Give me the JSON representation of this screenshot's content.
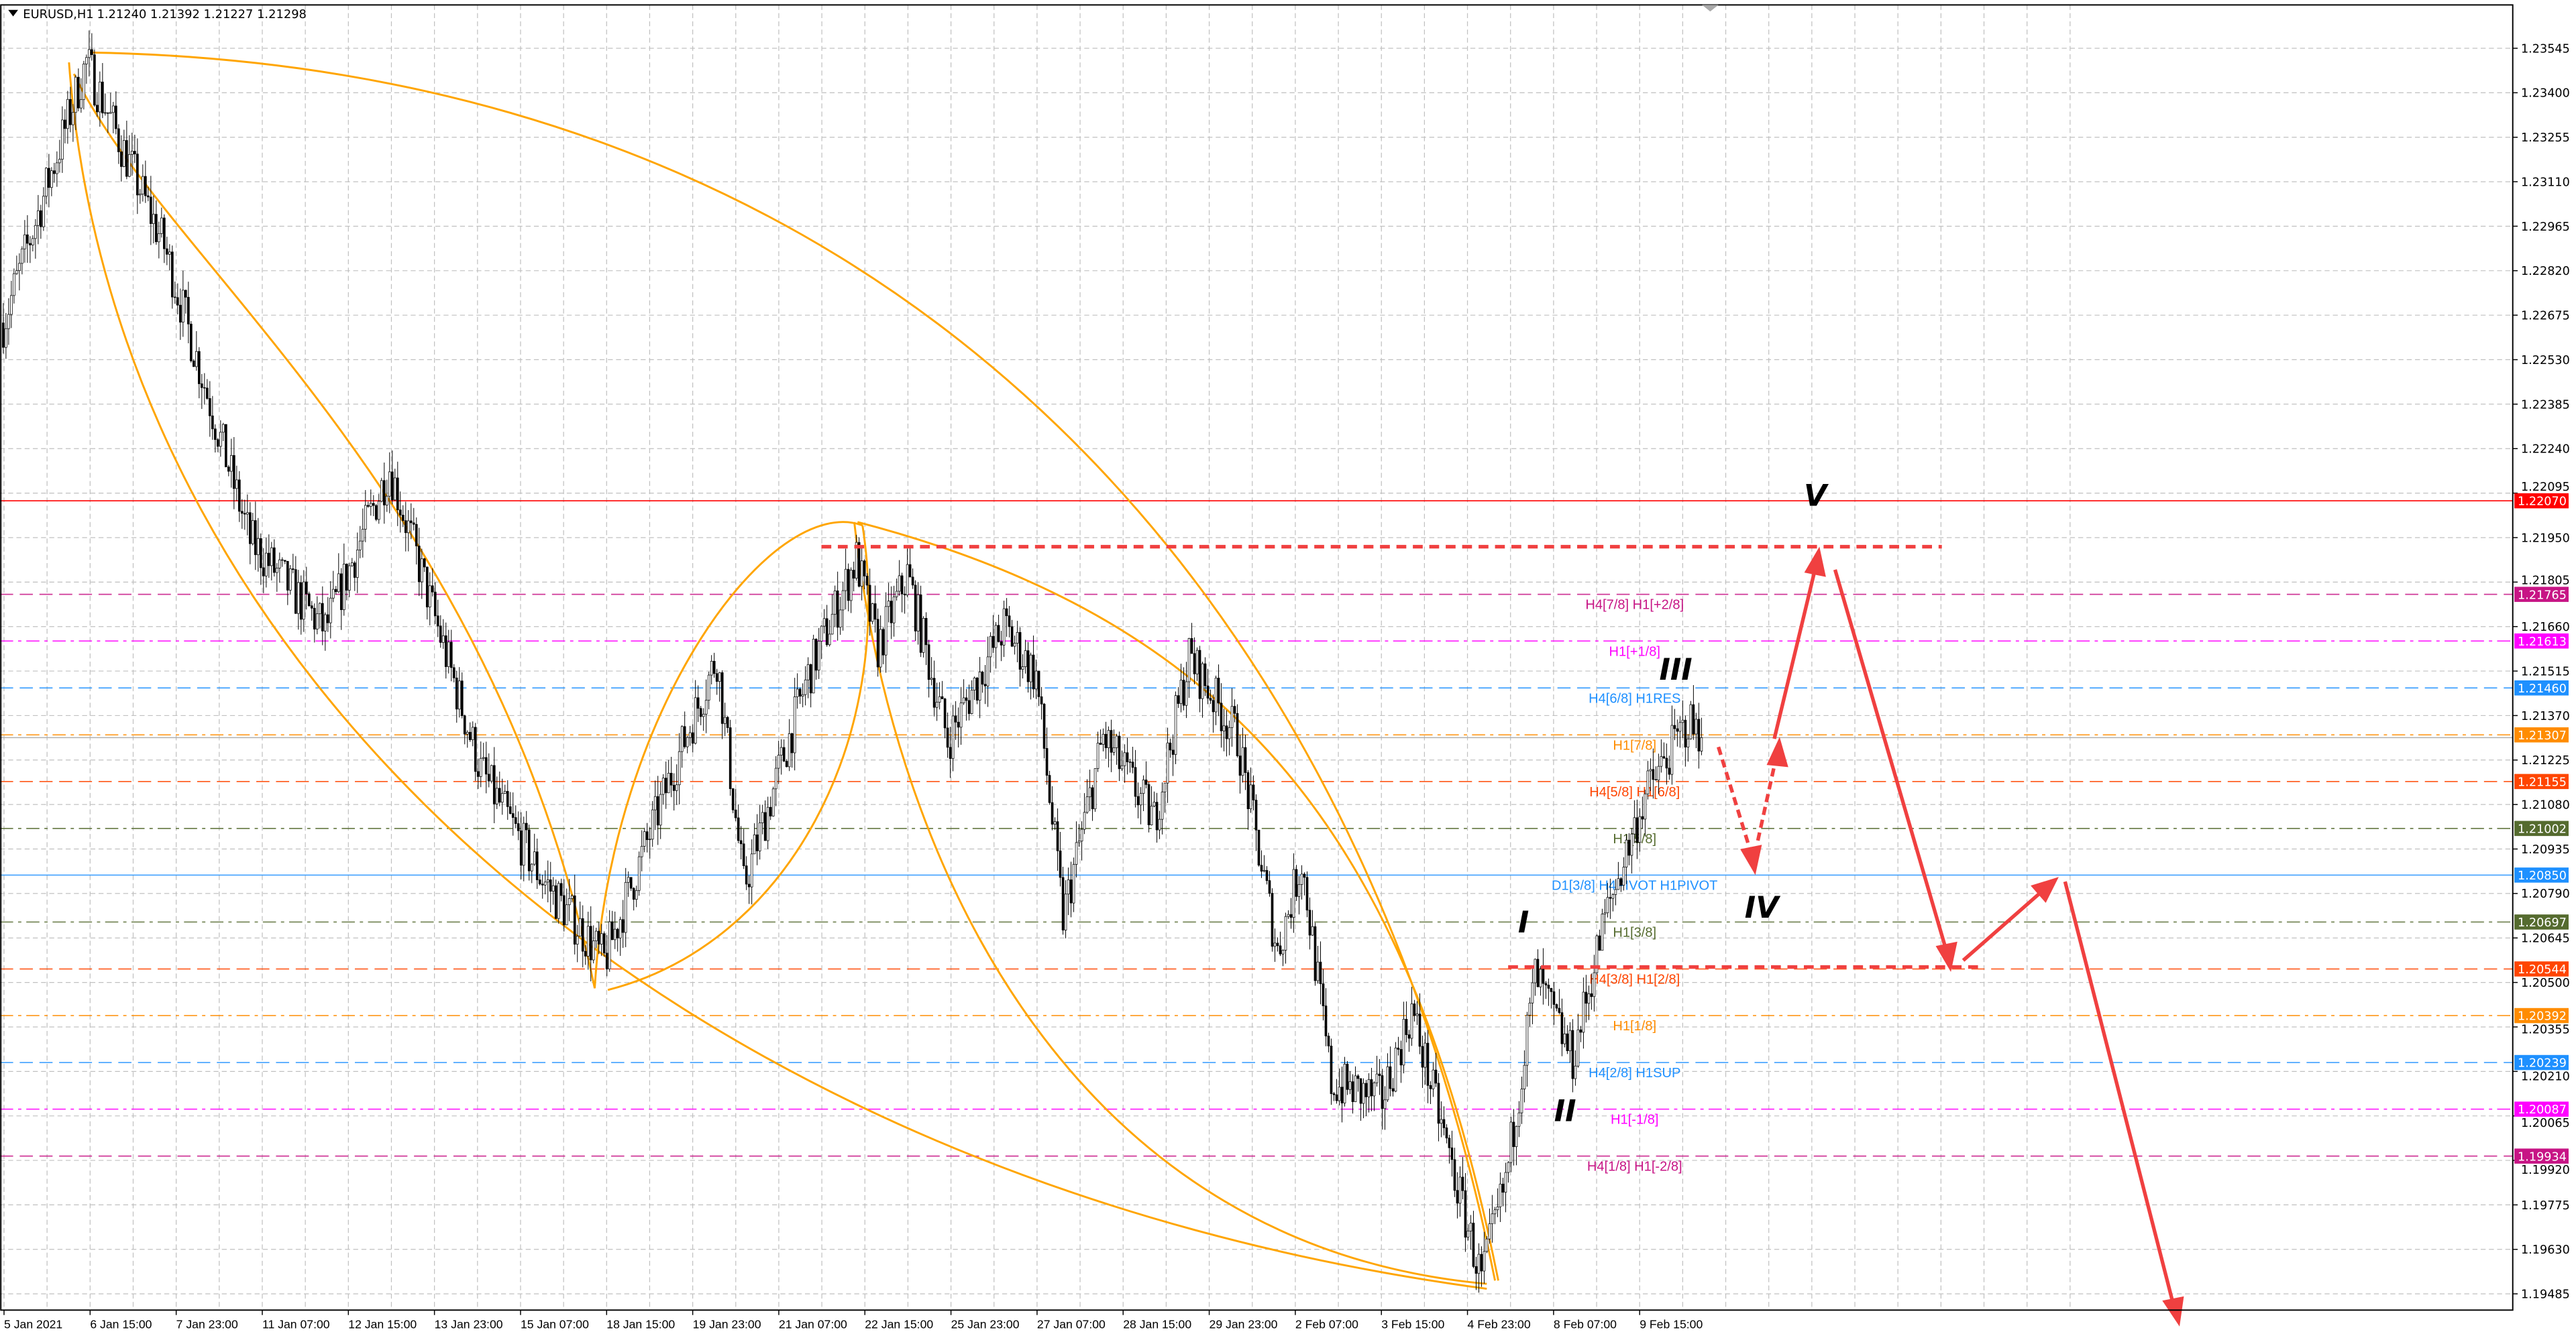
{
  "header": {
    "symbol": "EURUSD,H1",
    "ohlc": "1.21240 1.21392 1.21227 1.21298",
    "menu_icon": "triangle-down-icon"
  },
  "price_axis": {
    "ticks": [
      "1.23545",
      "1.23400",
      "1.23255",
      "1.23110",
      "1.22965",
      "1.22820",
      "1.22675",
      "1.22530",
      "1.22385",
      "1.22240",
      "1.22095",
      "1.21950",
      "1.21805",
      "1.21660",
      "1.21515",
      "1.21370",
      "1.21225",
      "1.21080",
      "1.20935",
      "1.20790",
      "1.20645",
      "1.20500",
      "1.20355",
      "1.20210",
      "1.20065",
      "1.19920",
      "1.19775",
      "1.19630",
      "1.19485"
    ],
    "current_price": "1.21298"
  },
  "time_axis": {
    "labels": [
      "5 Jan 2021",
      "6 Jan 15:00",
      "7 Jan 23:00",
      "11 Jan 07:00",
      "12 Jan 15:00",
      "13 Jan 23:00",
      "15 Jan 07:00",
      "18 Jan 15:00",
      "19 Jan 23:00",
      "21 Jan 07:00",
      "22 Jan 15:00",
      "25 Jan 23:00",
      "27 Jan 07:00",
      "28 Jan 15:00",
      "29 Jan 23:00",
      "2 Feb 07:00",
      "3 Feb 15:00",
      "4 Feb 23:00",
      "8 Feb 07:00",
      "9 Feb 15:00"
    ]
  },
  "alert_line": {
    "price": "1.22070",
    "color": "#ff0000"
  },
  "levels": [
    {
      "price": "1.21765",
      "label": "H4[7/8] H1[+2/8]",
      "color": "#c71585",
      "style": "dash"
    },
    {
      "price": "1.21613",
      "label": "H1[+1/8]",
      "color": "#ff00ff",
      "style": "dashdot"
    },
    {
      "price": "1.21460",
      "label": "H4[6/8] H1RES",
      "color": "#1e90ff",
      "style": "dash"
    },
    {
      "price": "1.21307",
      "label": "H1[7/8]",
      "color": "#ff8c00",
      "style": "dashdot"
    },
    {
      "price": "1.21155",
      "label": "H4[5/8] H1[6/8]",
      "color": "#ff4500",
      "style": "dash"
    },
    {
      "price": "1.21002",
      "label": "H1[5/8]",
      "color": "#556b2f",
      "style": "dashdot"
    },
    {
      "price": "1.20850",
      "label": "D1[3/8] H4PIVOT H1PIVOT",
      "color": "#1e90ff",
      "style": "solid"
    },
    {
      "price": "1.20697",
      "label": "H1[3/8]",
      "color": "#556b2f",
      "style": "dashdot"
    },
    {
      "price": "1.20544",
      "label": "H4[3/8] H1[2/8]",
      "color": "#ff4500",
      "style": "dash"
    },
    {
      "price": "1.20392",
      "label": "H1[1/8]",
      "color": "#ff8c00",
      "style": "dashdot"
    },
    {
      "price": "1.20239",
      "label": "H4[2/8] H1SUP",
      "color": "#1e90ff",
      "style": "dash"
    },
    {
      "price": "1.20087",
      "label": "H1[-1/8]",
      "color": "#ff00ff",
      "style": "dashdot"
    },
    {
      "price": "1.19934",
      "label": "H4[1/8] H1[-2/8]",
      "color": "#c71585",
      "style": "dash"
    }
  ],
  "wave_labels": [
    "I",
    "II",
    "III",
    "IV",
    "V"
  ],
  "price_path": [
    [
      0,
      1.2265
    ],
    [
      31,
      1.235
    ],
    [
      60,
      1.229
    ],
    [
      92,
      1.2194
    ],
    [
      120,
      1.2165
    ],
    [
      144,
      1.2218
    ],
    [
      178,
      1.2119
    ],
    [
      200,
      1.2085
    ],
    [
      224,
      1.2057
    ],
    [
      250,
      1.212
    ],
    [
      266,
      1.2156
    ],
    [
      276,
      1.2081
    ],
    [
      300,
      1.215
    ],
    [
      318,
      1.2188
    ],
    [
      326,
      1.2159
    ],
    [
      337,
      1.2183
    ],
    [
      352,
      1.2129
    ],
    [
      373,
      1.2166
    ],
    [
      385,
      1.215
    ],
    [
      395,
      1.2071
    ],
    [
      410,
      1.213
    ],
    [
      429,
      1.2103
    ],
    [
      442,
      1.2156
    ],
    [
      460,
      1.213
    ],
    [
      475,
      1.206
    ],
    [
      484,
      1.209
    ],
    [
      495,
      1.2017
    ],
    [
      514,
      1.2012
    ],
    [
      525,
      1.2041
    ],
    [
      540,
      1.199
    ],
    [
      551,
      1.1953
    ],
    [
      560,
      1.1985
    ],
    [
      571,
      1.2052
    ],
    [
      585,
      1.2025
    ],
    [
      597,
      1.2071
    ],
    [
      612,
      1.2111
    ],
    [
      628,
      1.2135
    ],
    [
      633,
      1.21298
    ]
  ],
  "colors": {
    "candle": "#000000",
    "drawing": "#ffa500",
    "forecast": "#f04040",
    "grid": "#c0c0c0"
  }
}
